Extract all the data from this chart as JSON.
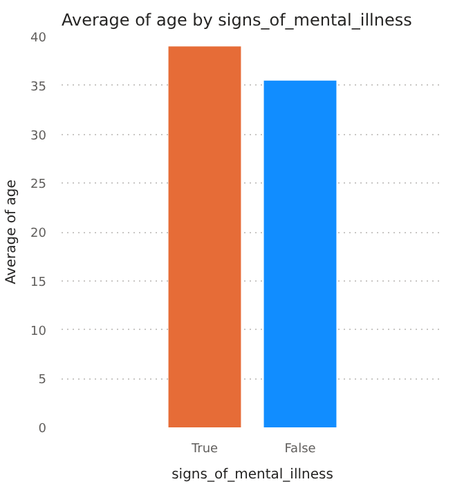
{
  "chart_data": {
    "type": "bar",
    "title": "Average of age by signs_of_mental_illness",
    "xlabel": "signs_of_mental_illness",
    "ylabel": "Average of age",
    "categories": [
      "True",
      "False"
    ],
    "values": [
      39.0,
      35.5
    ],
    "colors": [
      "#e66c37",
      "#118dff"
    ],
    "ylim": [
      0,
      40
    ],
    "yticks": [
      0,
      5,
      10,
      15,
      20,
      25,
      30,
      35,
      40
    ],
    "grid": "y"
  }
}
